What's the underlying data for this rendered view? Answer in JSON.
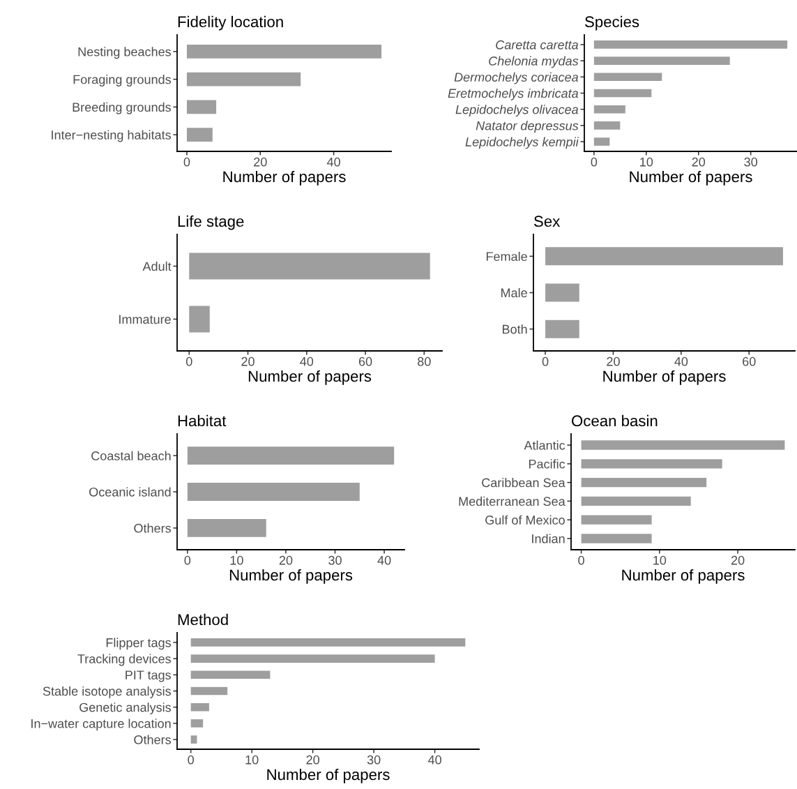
{
  "chart_data": [
    {
      "type": "bar",
      "orientation": "horizontal",
      "title": "Fidelity location",
      "xlabel": "Number of papers",
      "categories": [
        "Nesting beaches",
        "Foraging grounds",
        "Breeding grounds",
        "Inter−nesting habitats"
      ],
      "values": [
        53,
        31,
        8,
        7
      ],
      "color": "#9e9e9e",
      "xlim": [
        -2.65,
        55.65
      ],
      "xticks": [
        0,
        20,
        40
      ],
      "grid": false
    },
    {
      "type": "bar",
      "orientation": "horizontal",
      "title": "Species",
      "xlabel": "Number of papers",
      "categories": [
        "Caretta caretta",
        "Chelonia mydas",
        "Dermochelys coriacea",
        "Eretmochelys imbricata",
        "Lepidochelys olivacea",
        "Natator depressus",
        "Lepidochelys kempii"
      ],
      "values": [
        37,
        26,
        13,
        11,
        6,
        5,
        3
      ],
      "color": "#9e9e9e",
      "xlim": [
        -1.85,
        38.85
      ],
      "xticks": [
        0,
        10,
        20,
        30
      ],
      "grid": false
    },
    {
      "type": "bar",
      "orientation": "horizontal",
      "title": "Life stage",
      "xlabel": "Number of papers",
      "categories": [
        "Adult",
        "Immature"
      ],
      "values": [
        82,
        7
      ],
      "color": "#9e9e9e",
      "xlim": [
        -4.1,
        86.1
      ],
      "xticks": [
        0,
        20,
        40,
        60,
        80
      ],
      "grid": false
    },
    {
      "type": "bar",
      "orientation": "horizontal",
      "title": "Sex",
      "xlabel": "Number of papers",
      "categories": [
        "Female",
        "Male",
        "Both"
      ],
      "values": [
        70,
        10,
        10
      ],
      "color": "#9e9e9e",
      "xlim": [
        -3.5,
        73.5
      ],
      "xticks": [
        0,
        20,
        40,
        60
      ],
      "grid": false
    },
    {
      "type": "bar",
      "orientation": "horizontal",
      "title": "Habitat",
      "xlabel": "Number of papers",
      "categories": [
        "Coastal beach",
        "Oceanic island",
        "Others"
      ],
      "values": [
        42,
        35,
        16
      ],
      "color": "#9e9e9e",
      "xlim": [
        -2.1,
        44.1
      ],
      "xticks": [
        0,
        10,
        20,
        30,
        40
      ],
      "grid": false
    },
    {
      "type": "bar",
      "orientation": "horizontal",
      "title": "Ocean basin",
      "xlabel": "Number of papers",
      "categories": [
        "Atlantic",
        "Pacific",
        "Caribbean Sea",
        "Mediterranean Sea",
        "Gulf of Mexico",
        "Indian"
      ],
      "values": [
        26,
        18,
        16,
        14,
        9,
        9
      ],
      "color": "#9e9e9e",
      "xlim": [
        -1.3,
        27.3
      ],
      "xticks": [
        0,
        10,
        20
      ],
      "grid": false
    },
    {
      "type": "bar",
      "orientation": "horizontal",
      "title": "Method",
      "xlabel": "Number of papers",
      "categories": [
        "Flipper tags",
        "Tracking devices",
        "PIT tags",
        "Stable isotope analysis",
        "Genetic analysis",
        "In−water capture location",
        "Others"
      ],
      "values": [
        45,
        40,
        13,
        6,
        3,
        2,
        1
      ],
      "color": "#9e9e9e",
      "xlim": [
        -2.25,
        47.25
      ],
      "xticks": [
        0,
        10,
        20,
        30,
        40
      ],
      "grid": false
    }
  ]
}
